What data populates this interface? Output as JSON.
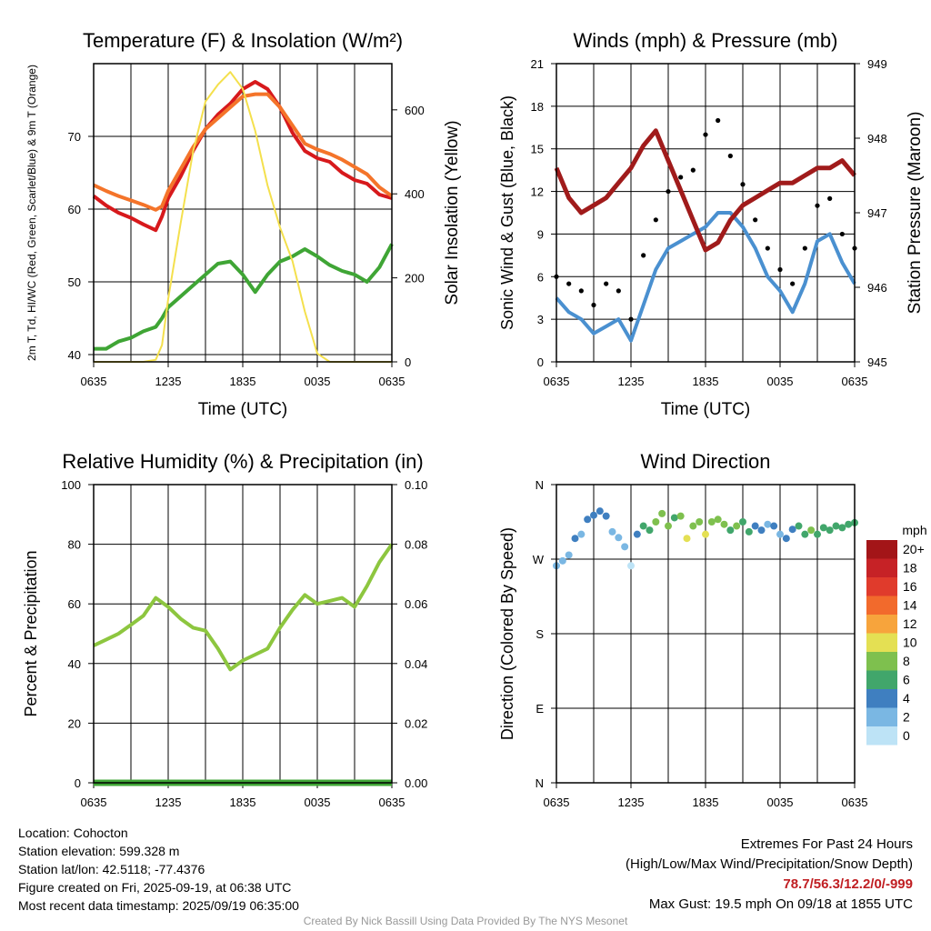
{
  "chart_data": [
    {
      "type": "line",
      "title": "Temperature (F) & Insolation (W/m²)",
      "xlabel": "Time (UTC)",
      "ylabel": "2m T, Td, HI/WC (Red, Green, Scarlet/Blue) & 9m T (Orange)",
      "ylabel2": "Solar Insolation (Yellow)",
      "x_ticks": [
        "0635",
        "1235",
        "1835",
        "0035",
        "0635"
      ],
      "ylim": [
        39,
        80
      ],
      "y_ticks": [
        40,
        50,
        60,
        70
      ],
      "y2lim": [
        0,
        710
      ],
      "y2_ticks": [
        0,
        200,
        400,
        600
      ],
      "grid": true,
      "x_hours": [
        0,
        1,
        2,
        3,
        4,
        5,
        5.5,
        6,
        7,
        8,
        9,
        10,
        11,
        12,
        13,
        14,
        15,
        16,
        17,
        18,
        19,
        20,
        21,
        22,
        23,
        24
      ],
      "series": [
        {
          "color": "#d7191c",
          "axis": "left",
          "values": [
            61.8,
            60.5,
            59.5,
            58.8,
            57.9,
            57.1,
            59.0,
            61.5,
            64.5,
            68.0,
            71.0,
            73.0,
            74.5,
            76.5,
            77.5,
            76.5,
            74.0,
            70.5,
            68.0,
            67.0,
            66.5,
            65.0,
            64.0,
            63.5,
            62.0,
            61.5
          ]
        },
        {
          "color": "#f4742a",
          "axis": "left",
          "values": [
            63.3,
            62.5,
            61.8,
            61.2,
            60.6,
            59.9,
            60.4,
            62.5,
            65.5,
            68.5,
            71.0,
            72.5,
            74.0,
            75.5,
            75.8,
            75.8,
            74.0,
            71.5,
            69.0,
            68.2,
            67.6,
            66.8,
            65.8,
            64.8,
            63.0,
            61.8
          ]
        },
        {
          "color": "#3fa535",
          "axis": "left",
          "values": [
            40.8,
            40.8,
            41.8,
            42.3,
            43.2,
            43.8,
            45.0,
            46.5,
            48.0,
            49.5,
            51.0,
            52.5,
            52.8,
            51.0,
            48.6,
            51.0,
            52.8,
            53.5,
            54.5,
            53.5,
            52.3,
            51.5,
            51.0,
            50.0,
            52.0,
            55.2
          ]
        },
        {
          "color": "#f4e04d",
          "axis": "right",
          "values": [
            0,
            0,
            0,
            0,
            0,
            5,
            40,
            150,
            330,
            500,
            620,
            660,
            690,
            650,
            550,
            420,
            320,
            240,
            120,
            20,
            0,
            0,
            0,
            0,
            0,
            0
          ]
        }
      ]
    },
    {
      "type": "line",
      "title": "Winds (mph) & Pressure (mb)",
      "xlabel": "Time (UTC)",
      "ylabel": "Sonic Wind & Gust (Blue, Black)",
      "ylabel2": "Station Pressure (Maroon)",
      "x_ticks": [
        "0635",
        "1235",
        "1835",
        "0035",
        "0635"
      ],
      "ylim": [
        0,
        21
      ],
      "y_ticks": [
        0,
        3,
        6,
        9,
        12,
        15,
        18,
        21
      ],
      "y2lim": [
        945,
        949
      ],
      "y2_ticks": [
        945,
        946,
        947,
        948,
        949
      ],
      "grid": true,
      "x_hours": [
        0,
        1,
        2,
        3,
        4,
        5,
        6,
        7,
        8,
        9,
        10,
        11,
        12,
        13,
        14,
        15,
        16,
        17,
        18,
        19,
        20,
        21,
        22,
        23,
        24
      ],
      "series": [
        {
          "color": "#4a90d0",
          "axis": "left",
          "values": [
            4.5,
            3.5,
            3.0,
            2.0,
            2.5,
            3.0,
            1.5,
            4.0,
            6.5,
            8.0,
            8.5,
            9.0,
            9.5,
            10.5,
            10.5,
            9.5,
            8.0,
            6.0,
            5.0,
            3.5,
            5.5,
            8.5,
            9.0,
            7.0,
            5.5
          ]
        },
        {
          "color": "#000000",
          "axis": "left",
          "marker": "dot",
          "values": [
            6.0,
            5.5,
            5.0,
            4.0,
            5.5,
            5.0,
            3.0,
            7.5,
            10.0,
            12.0,
            13.0,
            13.5,
            16.0,
            17.0,
            14.5,
            12.5,
            10.0,
            8.0,
            6.5,
            5.5,
            8.0,
            11.0,
            11.5,
            9.0,
            8.0
          ]
        },
        {
          "color": "#a01b1b",
          "axis": "right",
          "values": [
            947.6,
            947.2,
            947.0,
            947.1,
            947.2,
            947.4,
            947.6,
            947.9,
            948.1,
            947.7,
            947.3,
            946.9,
            946.5,
            946.6,
            946.9,
            947.1,
            947.2,
            947.3,
            947.4,
            947.4,
            947.5,
            947.6,
            947.6,
            947.7,
            947.5
          ]
        }
      ]
    },
    {
      "type": "line",
      "title": "Relative Humidity (%) & Precipitation (in)",
      "xlabel": "",
      "ylabel": "Percent & Precipitation",
      "x_ticks": [
        "0635",
        "1235",
        "1835",
        "0035",
        "0635"
      ],
      "ylim": [
        0,
        100
      ],
      "y_ticks": [
        0,
        20,
        40,
        60,
        80,
        100
      ],
      "y2lim": [
        0,
        0.1
      ],
      "y2_ticks": [
        "0.00",
        "0.02",
        "0.04",
        "0.06",
        "0.08",
        "0.10"
      ],
      "grid": true,
      "x_hours": [
        0,
        1,
        2,
        3,
        4,
        5,
        6,
        7,
        8,
        9,
        10,
        11,
        12,
        13,
        14,
        15,
        16,
        17,
        18,
        19,
        20,
        21,
        22,
        23,
        24
      ],
      "series": [
        {
          "color": "#8dc63f",
          "axis": "left",
          "values": [
            46,
            48,
            50,
            53,
            56,
            62,
            59,
            55,
            52,
            51,
            45,
            38,
            41,
            43,
            45,
            52,
            58,
            63,
            60,
            61,
            62,
            59,
            66,
            74,
            80
          ]
        },
        {
          "color": "#3fa535",
          "axis": "right",
          "values": [
            0,
            0,
            0,
            0,
            0,
            0,
            0,
            0,
            0,
            0,
            0,
            0,
            0,
            0,
            0,
            0,
            0,
            0,
            0,
            0,
            0,
            0,
            0,
            0,
            0
          ]
        }
      ]
    },
    {
      "type": "scatter",
      "title": "Wind Direction",
      "ylabel": "Direction (Colored By Speed)",
      "x_ticks": [
        "0635",
        "1235",
        "1835",
        "0035",
        "0635"
      ],
      "y_ticks": [
        "N",
        "E",
        "S",
        "W",
        "N"
      ],
      "ylim": [
        0,
        360
      ],
      "grid": true,
      "x_hours": [
        0,
        0.5,
        1,
        1.5,
        2,
        2.5,
        3,
        3.5,
        4,
        4.5,
        5,
        5.5,
        6,
        6.5,
        7,
        7.5,
        8,
        8.5,
        9,
        9.5,
        10,
        10.5,
        11,
        11.5,
        12,
        12.5,
        13,
        13.5,
        14,
        14.5,
        15,
        15.5,
        16,
        16.5,
        17,
        17.5,
        18,
        18.5,
        19,
        19.5,
        20,
        20.5,
        21,
        21.5,
        22,
        22.5,
        23,
        23.5,
        24
      ],
      "directions": [
        262,
        268,
        275,
        295,
        300,
        318,
        323,
        328,
        322,
        303,
        296,
        285,
        262,
        300,
        310,
        305,
        315,
        325,
        310,
        320,
        322,
        295,
        310,
        315,
        300,
        315,
        318,
        312,
        305,
        310,
        315,
        303,
        310,
        305,
        312,
        310,
        300,
        295,
        306,
        310,
        300,
        305,
        300,
        308,
        305,
        310,
        308,
        312,
        314
      ],
      "speeds": [
        3,
        3,
        3,
        4,
        2,
        4,
        4,
        4,
        4,
        2,
        3,
        2,
        1,
        5,
        6,
        7,
        8,
        9,
        8,
        7,
        9,
        10,
        8,
        9,
        10,
        9,
        8,
        9,
        7,
        8,
        6,
        6,
        5,
        4,
        3,
        4,
        3,
        4,
        5,
        6,
        7,
        8,
        6,
        7,
        6,
        7,
        6,
        7,
        6
      ]
    }
  ],
  "legend": {
    "title": "mph",
    "labels": [
      "20+",
      "18",
      "16",
      "14",
      "12",
      "10",
      "8",
      "6",
      "4",
      "2",
      "0"
    ],
    "colors": [
      "#a31518",
      "#c62226",
      "#e03b2c",
      "#f26a2c",
      "#f7a43c",
      "#e4e053",
      "#7ec04e",
      "#41a66b",
      "#3f7fc0",
      "#7ab7e3",
      "#bde3f6"
    ]
  },
  "info": {
    "location": "Location: Cohocton",
    "elevation": "Station elevation: 599.328 m",
    "latlon": "Station lat/lon: 42.5118; -77.4376",
    "created": "Figure created on Fri, 2025-09-19, at 06:38 UTC",
    "recent": "Most recent data timestamp: 2025/09/19 06:35:00"
  },
  "extremes": {
    "title": "Extremes For Past 24 Hours",
    "subtitle": "(High/Low/Max Wind/Precipitation/Snow Depth)",
    "values": "78.7/56.3/12.2/0/-999",
    "gust": "Max Gust: 19.5 mph On 09/18 at 1855 UTC"
  },
  "credit": "Created By Nick Bassill Using Data Provided By The NYS Mesonet"
}
